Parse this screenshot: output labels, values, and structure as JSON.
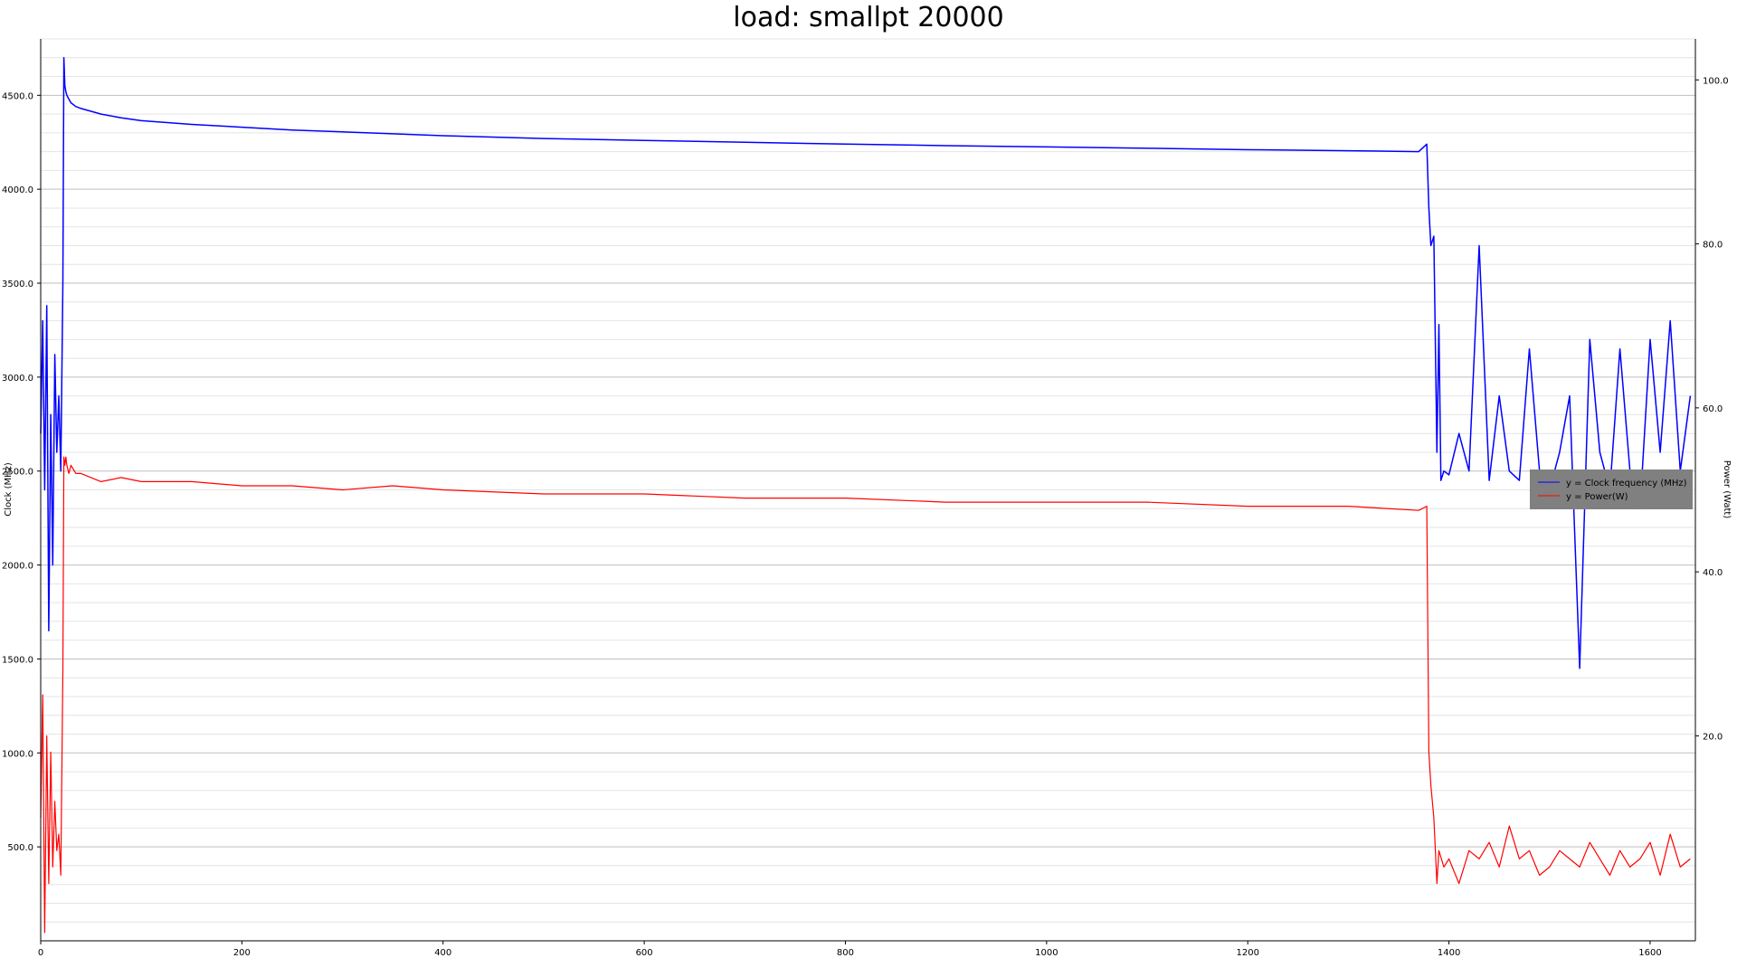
{
  "chart_data": {
    "type": "line",
    "title": "load: smallpt 20000",
    "xlabel": "",
    "ylabel": "Clock (MHz)",
    "y2label": "Power (Watt)",
    "xlim": [
      0,
      1645
    ],
    "ylim": [
      0,
      4800
    ],
    "y2lim": [
      -5,
      105
    ],
    "x_ticks": [
      "0",
      "200",
      "400",
      "600",
      "800",
      "1000",
      "1200",
      "1400",
      "1600"
    ],
    "y_ticks": [
      "500.0",
      "1000.0",
      "1500.0",
      "2000.0",
      "2500.0",
      "3000.0",
      "3500.0",
      "4000.0",
      "4500.0"
    ],
    "y2_ticks": [
      "20.0",
      "40.0",
      "60.0",
      "80.0",
      "100.0"
    ],
    "grid": true,
    "legend_position": "right-middle",
    "series": [
      {
        "name": "y = Clock frequency (MHz)",
        "axis": "left",
        "color": "#0000ff",
        "x": [
          0,
          2,
          4,
          6,
          8,
          10,
          12,
          14,
          16,
          18,
          20,
          22,
          23,
          24,
          25,
          26,
          28,
          30,
          35,
          40,
          50,
          60,
          80,
          100,
          150,
          200,
          250,
          300,
          350,
          400,
          500,
          600,
          700,
          800,
          900,
          1000,
          1100,
          1200,
          1300,
          1370,
          1378,
          1380,
          1382,
          1385,
          1388,
          1390,
          1392,
          1395,
          1400,
          1410,
          1420,
          1430,
          1440,
          1450,
          1460,
          1470,
          1480,
          1490,
          1500,
          1510,
          1520,
          1530,
          1540,
          1550,
          1560,
          1570,
          1580,
          1590,
          1600,
          1610,
          1620,
          1630,
          1640
        ],
        "values": [
          2700,
          3300,
          2400,
          3380,
          1650,
          2800,
          2000,
          3120,
          2600,
          2900,
          2500,
          3500,
          4700,
          4550,
          4520,
          4500,
          4480,
          4460,
          4440,
          4430,
          4415,
          4400,
          4380,
          4365,
          4345,
          4330,
          4315,
          4305,
          4295,
          4285,
          4270,
          4260,
          4250,
          4240,
          4232,
          4225,
          4218,
          4210,
          4205,
          4200,
          4240,
          3900,
          3700,
          3750,
          2600,
          3280,
          2450,
          2500,
          2480,
          2700,
          2500,
          3700,
          2450,
          2900,
          2500,
          2450,
          3150,
          2500,
          2400,
          2600,
          2900,
          1450,
          3200,
          2600,
          2400,
          3150,
          2500,
          2300,
          3200,
          2600,
          3300,
          2500,
          2900
        ]
      },
      {
        "name": "y = Power(W)",
        "axis": "right",
        "color": "#ff0000",
        "x": [
          0,
          2,
          4,
          6,
          8,
          10,
          12,
          14,
          16,
          18,
          20,
          22,
          23,
          24,
          25,
          26,
          28,
          30,
          35,
          40,
          50,
          60,
          80,
          100,
          150,
          200,
          250,
          300,
          350,
          400,
          500,
          600,
          700,
          800,
          900,
          1000,
          1100,
          1200,
          1300,
          1370,
          1378,
          1380,
          1382,
          1385,
          1388,
          1390,
          1395,
          1400,
          1410,
          1420,
          1430,
          1440,
          1450,
          1460,
          1470,
          1480,
          1490,
          1500,
          1510,
          1520,
          1530,
          1540,
          1550,
          1560,
          1570,
          1580,
          1590,
          1600,
          1610,
          1620,
          1630,
          1640
        ],
        "values": [
          10,
          25,
          -4,
          20,
          2,
          18,
          4,
          12,
          6,
          8,
          3,
          28,
          54,
          53,
          54,
          53,
          52,
          53,
          52,
          52,
          51.5,
          51,
          51.5,
          51,
          51,
          50.5,
          50.5,
          50,
          50.5,
          50,
          49.5,
          49.5,
          49,
          49,
          48.5,
          48.5,
          48.5,
          48,
          48,
          47.5,
          48,
          18,
          14,
          10,
          2,
          6,
          4,
          5,
          2,
          6,
          5,
          7,
          4,
          9,
          5,
          6,
          3,
          4,
          6,
          5,
          4,
          7,
          5,
          3,
          6,
          4,
          5,
          7,
          3,
          8,
          4,
          5
        ]
      }
    ]
  }
}
